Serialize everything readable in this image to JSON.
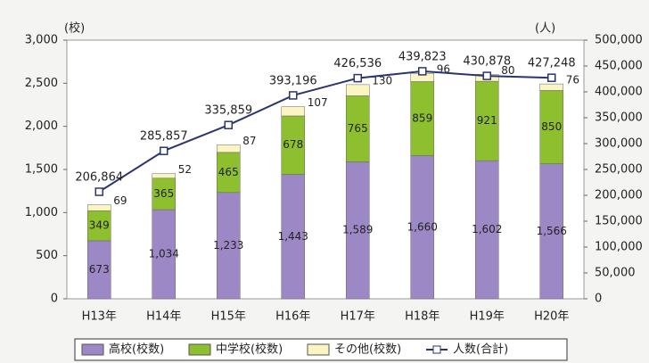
{
  "chart_data": {
    "type": "bar",
    "y_unit": "(校)",
    "y2_unit": "(人)",
    "categories": [
      "H13年",
      "H14年",
      "H15年",
      "H16年",
      "H17年",
      "H18年",
      "H19年",
      "H20年"
    ],
    "ylim": [
      0,
      3000
    ],
    "yticks": [
      0,
      500,
      {
        "value": 1000,
        "label": "1,000"
      },
      {
        "value": 1500,
        "label": "1,500"
      },
      {
        "value": 2000,
        "label": "2,000"
      },
      {
        "value": 2500,
        "label": "2,500"
      },
      {
        "value": 3000,
        "label": "3,000"
      }
    ],
    "y2lim": [
      0,
      500000
    ],
    "y2ticks": [
      0,
      {
        "value": 50000,
        "label": "50,000"
      },
      {
        "value": 100000,
        "label": "100,000"
      },
      {
        "value": 150000,
        "label": "150,000"
      },
      {
        "value": 200000,
        "label": "200,000"
      },
      {
        "value": 250000,
        "label": "250,000"
      },
      {
        "value": 300000,
        "label": "300,000"
      },
      {
        "value": 350000,
        "label": "350,000"
      },
      {
        "value": 400000,
        "label": "400,000"
      },
      {
        "value": 450000,
        "label": "450,000"
      },
      {
        "value": 500000,
        "label": "500,000"
      }
    ],
    "series": [
      {
        "name": "高校(校数)",
        "color": "#9d88c6",
        "values": [
          673,
          1034,
          1233,
          1443,
          1589,
          1660,
          1602,
          1566
        ],
        "value_labels": [
          "673",
          "1,034",
          "1,233",
          "1,443",
          "1,589",
          "1,660",
          "1,602",
          "1,566"
        ]
      },
      {
        "name": "中学校(校数)",
        "color": "#8dbf2e",
        "values": [
          349,
          365,
          465,
          678,
          765,
          859,
          921,
          850
        ]
      },
      {
        "name": "その他(校数)",
        "color": "#fbf5c4",
        "values": [
          69,
          52,
          87,
          107,
          130,
          96,
          80,
          76
        ]
      },
      {
        "name": "人数(合計)",
        "color": "#2a3570",
        "axis": "y2",
        "type": "line",
        "values": [
          206864,
          285857,
          335859,
          393196,
          426536,
          439823,
          430878,
          427248
        ],
        "value_labels": [
          "206,864",
          "285,857",
          "335,859",
          "393,196",
          "426,536",
          "439,823",
          "430,878",
          "427,248"
        ]
      }
    ]
  }
}
